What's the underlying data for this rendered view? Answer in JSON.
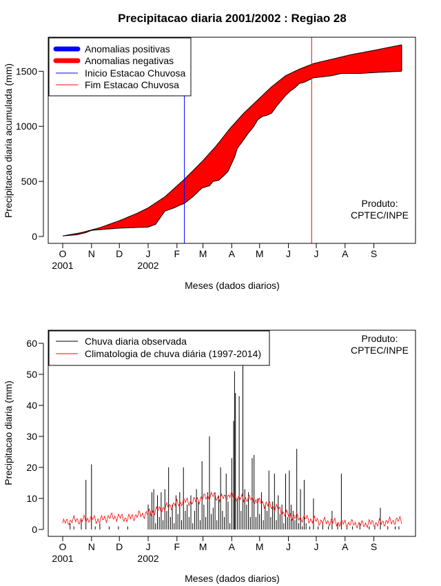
{
  "chart_data": [
    {
      "type": "area",
      "title": "Precipitacao diaria 2001/2002 : Regiao 28",
      "xlabel": "Meses (dados diarios)",
      "ylabel": "Precipitacao diaria acumulada (mm)",
      "x_range_days": [
        0,
        365
      ],
      "ylim": [
        0,
        1750
      ],
      "y_ticks": [
        0,
        500,
        1000,
        1500
      ],
      "month_ticks": [
        {
          "label": "O",
          "day": 0
        },
        {
          "label": "N",
          "day": 31
        },
        {
          "label": "D",
          "day": 61
        },
        {
          "label": "J",
          "day": 92
        },
        {
          "label": "F",
          "day": 123
        },
        {
          "label": "M",
          "day": 151
        },
        {
          "label": "A",
          "day": 182
        },
        {
          "label": "M",
          "day": 212
        },
        {
          "label": "J",
          "day": 243
        },
        {
          "label": "J",
          "day": 273
        },
        {
          "label": "A",
          "day": 304
        },
        {
          "label": "S",
          "day": 335
        }
      ],
      "year_labels": [
        {
          "label": "2001",
          "day": 0
        },
        {
          "label": "2002",
          "day": 92
        }
      ],
      "legend": [
        {
          "label": "Anomalias positivas",
          "color": "#0000ff",
          "style": "thick"
        },
        {
          "label": "Anomalias negativas",
          "color": "#ff0000",
          "style": "thick"
        },
        {
          "label": "Inicio Estacao Chuvosa",
          "color": "#0000ff",
          "style": "thin"
        },
        {
          "label": "Fim Estacao Chuvosa",
          "color": "#ff0000",
          "style": "thin"
        }
      ],
      "annotation": [
        "Produto:",
        "CPTEC/INPE"
      ],
      "vlines": [
        {
          "name": "Inicio Estacao Chuvosa",
          "day": 131,
          "color": "#0000ff"
        },
        {
          "name": "Fim Estacao Chuvosa",
          "day": 268,
          "color": "#ff0000"
        }
      ],
      "series": [
        {
          "name": "Climatologia acumulada",
          "color": "#000000",
          "points": [
            [
              0,
              5
            ],
            [
              20,
              35
            ],
            [
              40,
              80
            ],
            [
              60,
              140
            ],
            [
              80,
              210
            ],
            [
              92,
              260
            ],
            [
              110,
              360
            ],
            [
              131,
              520
            ],
            [
              150,
              680
            ],
            [
              165,
              820
            ],
            [
              180,
              980
            ],
            [
              195,
              1120
            ],
            [
              210,
              1240
            ],
            [
              225,
              1360
            ],
            [
              240,
              1460
            ],
            [
              255,
              1520
            ],
            [
              270,
              1570
            ],
            [
              290,
              1610
            ],
            [
              310,
              1650
            ],
            [
              335,
              1690
            ],
            [
              365,
              1740
            ]
          ]
        },
        {
          "name": "Observada acumulada",
          "color": "#000000",
          "points": [
            [
              0,
              5
            ],
            [
              15,
              15
            ],
            [
              25,
              35
            ],
            [
              31,
              55
            ],
            [
              45,
              65
            ],
            [
              60,
              75
            ],
            [
              75,
              80
            ],
            [
              92,
              85
            ],
            [
              100,
              110
            ],
            [
              110,
              230
            ],
            [
              120,
              260
            ],
            [
              125,
              280
            ],
            [
              131,
              300
            ],
            [
              140,
              360
            ],
            [
              145,
              400
            ],
            [
              150,
              440
            ],
            [
              158,
              460
            ],
            [
              162,
              500
            ],
            [
              168,
              510
            ],
            [
              172,
              540
            ],
            [
              178,
              590
            ],
            [
              185,
              720
            ],
            [
              188,
              800
            ],
            [
              195,
              880
            ],
            [
              200,
              940
            ],
            [
              205,
              990
            ],
            [
              210,
              1060
            ],
            [
              215,
              1090
            ],
            [
              220,
              1100
            ],
            [
              225,
              1120
            ],
            [
              230,
              1180
            ],
            [
              235,
              1230
            ],
            [
              240,
              1280
            ],
            [
              245,
              1320
            ],
            [
              250,
              1350
            ],
            [
              255,
              1390
            ],
            [
              260,
              1400
            ],
            [
              265,
              1420
            ],
            [
              270,
              1440
            ],
            [
              290,
              1460
            ],
            [
              300,
              1480
            ],
            [
              320,
              1480
            ],
            [
              340,
              1490
            ],
            [
              365,
              1500
            ]
          ]
        }
      ]
    },
    {
      "type": "bar",
      "xlabel": "Meses (dados diarios)",
      "ylabel": "Precipitacao diaria (mm)",
      "x_range_days": [
        0,
        365
      ],
      "ylim": [
        0,
        65
      ],
      "y_ticks": [
        0,
        10,
        20,
        30,
        40,
        50,
        60
      ],
      "month_ticks": [
        {
          "label": "O",
          "day": 0
        },
        {
          "label": "N",
          "day": 31
        },
        {
          "label": "D",
          "day": 61
        },
        {
          "label": "J",
          "day": 92
        },
        {
          "label": "F",
          "day": 123
        },
        {
          "label": "M",
          "day": 151
        },
        {
          "label": "A",
          "day": 182
        },
        {
          "label": "M",
          "day": 212
        },
        {
          "label": "J",
          "day": 243
        },
        {
          "label": "J",
          "day": 273
        },
        {
          "label": "A",
          "day": 304
        },
        {
          "label": "S",
          "day": 335
        }
      ],
      "year_labels": [
        {
          "label": "2001",
          "day": 0
        },
        {
          "label": "2002",
          "day": 92
        }
      ],
      "legend": [
        {
          "label": "Chuva diaria observada",
          "color": "#000000"
        },
        {
          "label": "Climatologia de chuva diária (1997-2014)",
          "color": "#ff0000"
        }
      ],
      "annotation": [
        "Produto:",
        "CPTEC/INPE"
      ],
      "observed_bars": [
        [
          8,
          2
        ],
        [
          12,
          1
        ],
        [
          20,
          3
        ],
        [
          25,
          16
        ],
        [
          31,
          21
        ],
        [
          35,
          1
        ],
        [
          40,
          2
        ],
        [
          50,
          1
        ],
        [
          60,
          1
        ],
        [
          70,
          1
        ],
        [
          92,
          8
        ],
        [
          94,
          6
        ],
        [
          96,
          12
        ],
        [
          98,
          13
        ],
        [
          100,
          2
        ],
        [
          102,
          11
        ],
        [
          104,
          4
        ],
        [
          106,
          12
        ],
        [
          108,
          3
        ],
        [
          110,
          13
        ],
        [
          112,
          6
        ],
        [
          114,
          20
        ],
        [
          116,
          4
        ],
        [
          118,
          8
        ],
        [
          120,
          2
        ],
        [
          122,
          11
        ],
        [
          124,
          5
        ],
        [
          126,
          12
        ],
        [
          128,
          3
        ],
        [
          130,
          20
        ],
        [
          132,
          6
        ],
        [
          134,
          8
        ],
        [
          136,
          4
        ],
        [
          138,
          11
        ],
        [
          140,
          2
        ],
        [
          142,
          6
        ],
        [
          144,
          13
        ],
        [
          146,
          9
        ],
        [
          148,
          3
        ],
        [
          150,
          22
        ],
        [
          152,
          8
        ],
        [
          154,
          4
        ],
        [
          156,
          12
        ],
        [
          158,
          30
        ],
        [
          160,
          5
        ],
        [
          162,
          7
        ],
        [
          164,
          12
        ],
        [
          166,
          3
        ],
        [
          168,
          11
        ],
        [
          170,
          20
        ],
        [
          172,
          6
        ],
        [
          174,
          4
        ],
        [
          176,
          18
        ],
        [
          178,
          9
        ],
        [
          180,
          2
        ],
        [
          182,
          23
        ],
        [
          184,
          35
        ],
        [
          185,
          51
        ],
        [
          186,
          44
        ],
        [
          188,
          10
        ],
        [
          190,
          43
        ],
        [
          192,
          6
        ],
        [
          194,
          56
        ],
        [
          196,
          13
        ],
        [
          198,
          8
        ],
        [
          200,
          12
        ],
        [
          202,
          4
        ],
        [
          204,
          23
        ],
        [
          206,
          24
        ],
        [
          208,
          4
        ],
        [
          210,
          10
        ],
        [
          212,
          5
        ],
        [
          214,
          12
        ],
        [
          216,
          3
        ],
        [
          218,
          8
        ],
        [
          220,
          6
        ],
        [
          222,
          19
        ],
        [
          224,
          4
        ],
        [
          226,
          9
        ],
        [
          228,
          18
        ],
        [
          230,
          3
        ],
        [
          232,
          11
        ],
        [
          234,
          5
        ],
        [
          236,
          8
        ],
        [
          238,
          2
        ],
        [
          240,
          18
        ],
        [
          242,
          4
        ],
        [
          244,
          19
        ],
        [
          246,
          8
        ],
        [
          248,
          6
        ],
        [
          250,
          3
        ],
        [
          252,
          26
        ],
        [
          254,
          2
        ],
        [
          256,
          13
        ],
        [
          258,
          1
        ],
        [
          260,
          16
        ],
        [
          262,
          2
        ],
        [
          266,
          1
        ],
        [
          270,
          10
        ],
        [
          275,
          1
        ],
        [
          280,
          2
        ],
        [
          286,
          1
        ],
        [
          290,
          6
        ],
        [
          296,
          2
        ],
        [
          300,
          18
        ],
        [
          306,
          1
        ],
        [
          312,
          1
        ],
        [
          320,
          2
        ],
        [
          330,
          1
        ],
        [
          336,
          1
        ],
        [
          342,
          7
        ],
        [
          350,
          1
        ],
        [
          358,
          1
        ],
        [
          362,
          1
        ]
      ],
      "climatology_line": [
        [
          0,
          2
        ],
        [
          10,
          3
        ],
        [
          20,
          3
        ],
        [
          30,
          3.5
        ],
        [
          40,
          3
        ],
        [
          50,
          4
        ],
        [
          60,
          4
        ],
        [
          70,
          3.5
        ],
        [
          80,
          4.5
        ],
        [
          90,
          5
        ],
        [
          100,
          6
        ],
        [
          110,
          7
        ],
        [
          120,
          8
        ],
        [
          130,
          9
        ],
        [
          140,
          9
        ],
        [
          150,
          10
        ],
        [
          160,
          11
        ],
        [
          170,
          10
        ],
        [
          180,
          11
        ],
        [
          190,
          10
        ],
        [
          200,
          10
        ],
        [
          210,
          9
        ],
        [
          220,
          8
        ],
        [
          230,
          7
        ],
        [
          240,
          5
        ],
        [
          250,
          4
        ],
        [
          260,
          3.5
        ],
        [
          270,
          3
        ],
        [
          280,
          2.5
        ],
        [
          290,
          2.5
        ],
        [
          300,
          2
        ],
        [
          310,
          2
        ],
        [
          320,
          1.5
        ],
        [
          330,
          2
        ],
        [
          340,
          2
        ],
        [
          350,
          2.5
        ],
        [
          365,
          3
        ]
      ]
    }
  ]
}
